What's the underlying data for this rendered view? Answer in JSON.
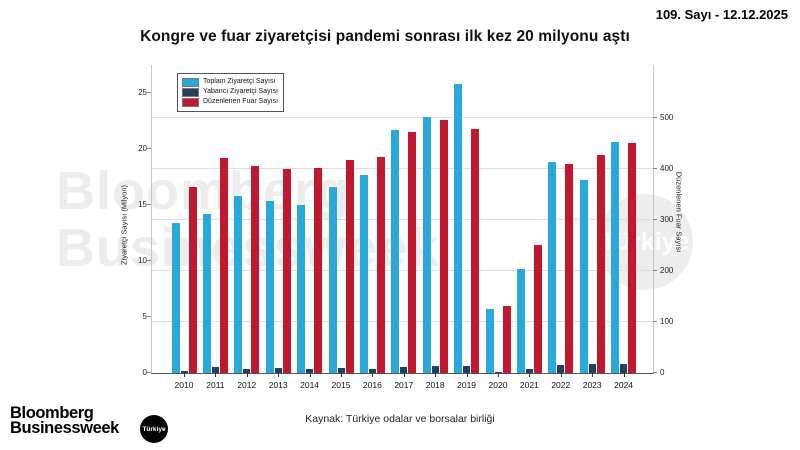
{
  "header": {
    "issue": "109. Sayı - 12.12.2025",
    "title": "Kongre ve fuar ziyaretçisi pandemi sonrası ilk kez 20 milyonu aştı"
  },
  "chart_data": {
    "type": "bar",
    "title": "Kongre ve fuar ziyaretçisi pandemi sonrası ilk kez 20 milyonu aştı",
    "categories": [
      "2010",
      "2011",
      "2012",
      "2013",
      "2014",
      "2015",
      "2016",
      "2017",
      "2018",
      "2019",
      "2020",
      "2021",
      "2022",
      "2023",
      "2024"
    ],
    "series": [
      {
        "name": "Toplam Ziyaretçi Sayısı",
        "key": "toplam",
        "axis": "left",
        "color": "#29a8dc",
        "values": [
          13.4,
          14.2,
          15.8,
          15.4,
          15.0,
          16.6,
          17.7,
          21.7,
          22.9,
          25.8,
          5.7,
          9.3,
          18.8,
          17.2,
          20.6
        ]
      },
      {
        "name": "Yabancı Ziyaretçi Sayısı",
        "key": "yabanci",
        "axis": "left",
        "color": "#1e4164",
        "values": [
          0.2,
          0.55,
          0.4,
          0.45,
          0.4,
          0.45,
          0.4,
          0.55,
          0.65,
          0.65,
          0.1,
          0.35,
          0.7,
          0.8,
          0.8
        ]
      },
      {
        "name": "Düzenlenen Fuar Sayısı",
        "key": "fuar",
        "axis": "right",
        "color": "#c2182f",
        "values": [
          365,
          422,
          405,
          401,
          403,
          417,
          423,
          472,
          497,
          478,
          132,
          252,
          409,
          428,
          452
        ]
      }
    ],
    "left_axis": {
      "label": "Ziyaretçi Sayısı (Milyon)",
      "ticks": [
        0,
        5,
        10,
        15,
        20,
        25
      ],
      "max": 27.5
    },
    "right_axis": {
      "label": "Düzenlenen Fuar Sayısı",
      "ticks": [
        0,
        100,
        200,
        300,
        400,
        500
      ],
      "max": 604
    },
    "grid": "horizontal, at right-axis ticks",
    "legend_position": "top-left"
  },
  "source": "Kaynak: Türkiye odalar ve borsalar birliği",
  "footer_logo": {
    "line1": "Bloomberg",
    "line2": "Businessweek",
    "badge": "Türkiye"
  },
  "watermark": {
    "line1": "Bloomberg",
    "line2": "Businessweek",
    "badge": "Türkiye"
  }
}
